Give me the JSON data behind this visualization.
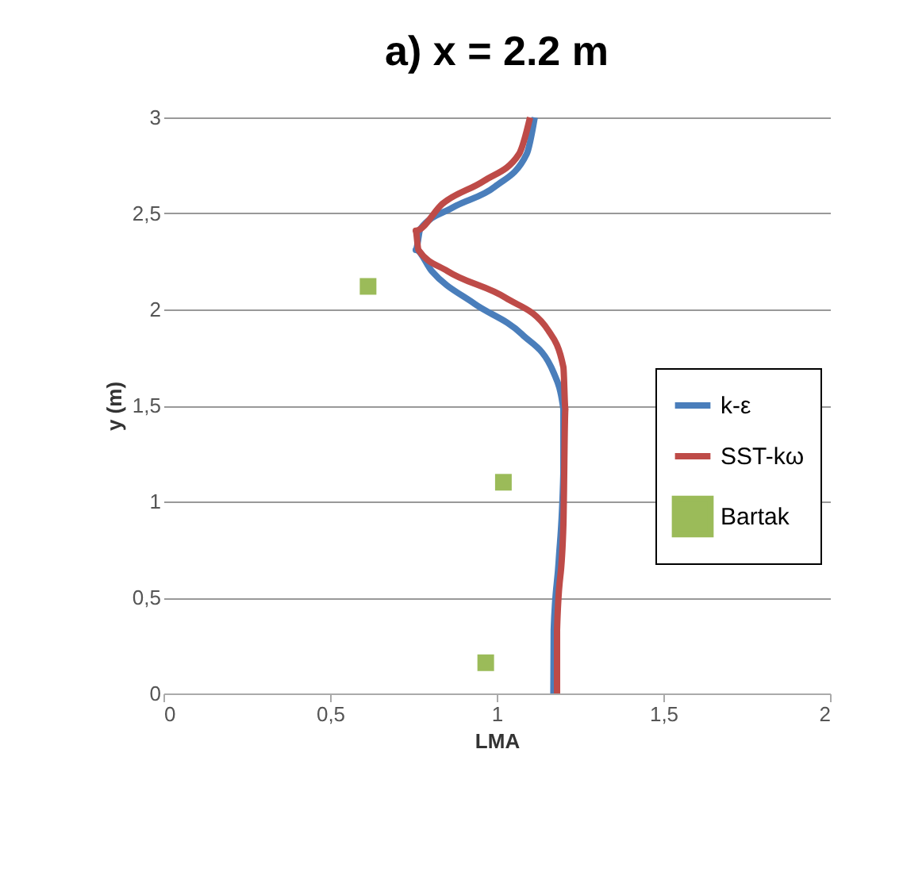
{
  "chart_data": {
    "type": "line",
    "title": "a) x = 2.2 m",
    "xlabel": "LMA",
    "ylabel": "y (m)",
    "xlim": [
      0,
      2
    ],
    "xticks": [
      0,
      {
        "value": 0.5,
        "label": "0,5"
      },
      1,
      {
        "value": 1.5,
        "label": "1,5"
      },
      2
    ],
    "ylim": [
      0,
      3
    ],
    "yticks": [
      0,
      {
        "value": 0.5,
        "label": "0,5"
      },
      1,
      {
        "value": 1.5,
        "label": "1,5"
      },
      2,
      {
        "value": 2.5,
        "label": "2,5"
      },
      3
    ],
    "grid": "y",
    "legend": "right",
    "line_style": "solid",
    "series": [
      {
        "name": "k-ε",
        "color": "#4a7ebb",
        "x": [
          1.17,
          1.171,
          1.186,
          1.2,
          1.2,
          1.171,
          1.076,
          0.933,
          0.805,
          0.757,
          0.771,
          0.867,
          0.995,
          1.09,
          1.114
        ],
        "values": [
          0,
          0.33,
          0.69,
          1.15,
          1.48,
          1.67,
          1.87,
          2.03,
          2.2,
          2.31,
          2.42,
          2.53,
          2.64,
          2.81,
          3
        ]
      },
      {
        "name": "SST-kω",
        "color": "#be4b48",
        "x": [
          1.181,
          1.181,
          1.2,
          1.206,
          1.2,
          1.155,
          1.027,
          0.852,
          0.765,
          0.757,
          0.837,
          0.962,
          1.067,
          1.1
        ],
        "values": [
          0,
          0.33,
          0.88,
          1.48,
          1.7,
          1.89,
          2.06,
          2.2,
          2.31,
          2.41,
          2.55,
          2.67,
          2.81,
          3
        ]
      },
      {
        "name": "Bartak",
        "type": "scatter",
        "marker": "square",
        "color": "#9bbb59",
        "x": [
          0.614,
          1.02,
          0.967
        ],
        "values": [
          2.12,
          1.1,
          0.16
        ]
      }
    ]
  }
}
